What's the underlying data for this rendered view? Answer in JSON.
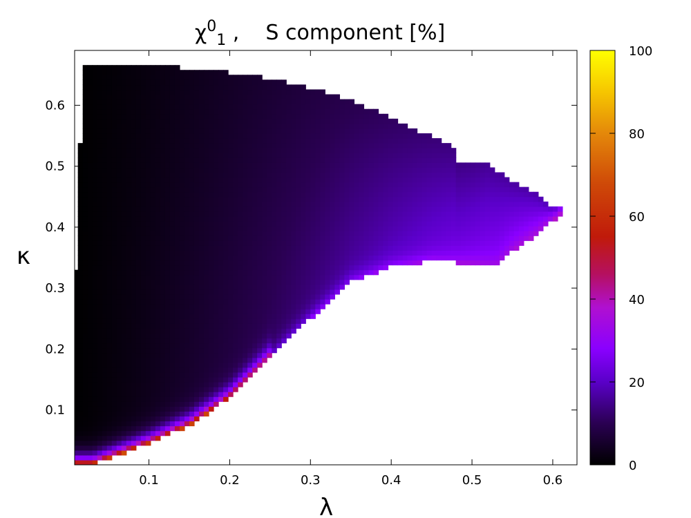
{
  "chart_data": {
    "type": "heatmap",
    "title": {
      "main": "χ",
      "sup": "0",
      "sub": "1",
      "rest": " ,    S component [%]"
    },
    "xlabel": "λ",
    "ylabel": "κ",
    "xlim": [
      0.008,
      0.63
    ],
    "ylim": [
      0.01,
      0.69
    ],
    "x_ticks": [
      0.1,
      0.2,
      0.3,
      0.4,
      0.5,
      0.6
    ],
    "y_ticks": [
      0.1,
      0.2,
      0.3,
      0.4,
      0.5,
      0.6
    ],
    "x_tick_labels": [
      "0.1",
      "0.2",
      "0.3",
      "0.4",
      "0.5",
      "0.6"
    ],
    "y_tick_labels": [
      "0.1",
      "0.2",
      "0.3",
      "0.4",
      "0.5",
      "0.6"
    ],
    "colorbar": {
      "range": [
        0,
        100
      ],
      "ticks": [
        0,
        20,
        40,
        60,
        80,
        100
      ],
      "tick_labels": [
        "0",
        "20",
        "40",
        "60",
        "80",
        "100"
      ],
      "palette": [
        "#000000",
        "#2a0052",
        "#7a00ff",
        "#b10fd6",
        "#c0101a",
        "#e0660b",
        "#ffb600",
        "#ffff00"
      ]
    },
    "region": {
      "description_points_upper_boundary": [
        [
          0.0,
          0.33
        ],
        [
          0.012,
          0.33
        ],
        [
          0.012,
          0.535
        ],
        [
          0.018,
          0.535
        ],
        [
          0.018,
          0.665
        ],
        [
          0.08,
          0.665
        ],
        [
          0.08,
          0.66
        ],
        [
          0.14,
          0.66
        ],
        [
          0.14,
          0.655
        ],
        [
          0.2,
          0.65
        ],
        [
          0.25,
          0.64
        ],
        [
          0.3,
          0.625
        ],
        [
          0.35,
          0.605
        ],
        [
          0.4,
          0.575
        ],
        [
          0.45,
          0.545
        ],
        [
          0.48,
          0.525
        ],
        [
          0.48,
          0.505
        ],
        [
          0.5,
          0.5
        ],
        [
          0.52,
          0.5
        ],
        [
          0.55,
          0.47
        ],
        [
          0.58,
          0.45
        ],
        [
          0.6,
          0.43
        ],
        [
          0.615,
          0.425
        ]
      ],
      "lower_boundary": [
        [
          0.615,
          0.425
        ],
        [
          0.6,
          0.41
        ],
        [
          0.58,
          0.385
        ],
        [
          0.55,
          0.36
        ],
        [
          0.53,
          0.335
        ],
        [
          0.5,
          0.34
        ],
        [
          0.45,
          0.345
        ],
        [
          0.4,
          0.335
        ],
        [
          0.35,
          0.31
        ],
        [
          0.3,
          0.25
        ],
        [
          0.25,
          0.185
        ],
        [
          0.2,
          0.12
        ],
        [
          0.15,
          0.075
        ],
        [
          0.1,
          0.045
        ],
        [
          0.05,
          0.02
        ],
        [
          0.03,
          0.01
        ],
        [
          0.0,
          0.01
        ]
      ]
    }
  }
}
